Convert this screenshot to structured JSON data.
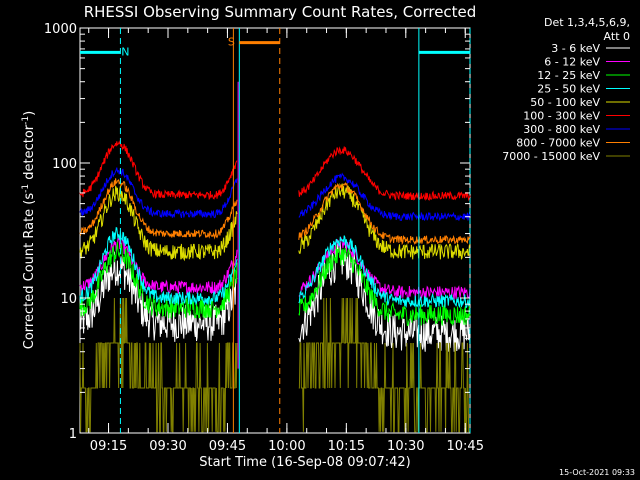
{
  "chart_data": {
    "type": "line",
    "title": "RHESSI Observing Summary Count Rates, Corrected",
    "xlabel": "Start Time (16-Sep-08 09:07:42)",
    "ylabel_main": "Corrected Count Rate (s",
    "ylabel_sup1": "-1",
    "ylabel_mid": " detector",
    "ylabel_sup2": "-1",
    "ylabel_end": ")",
    "yscale": "log",
    "ylim": [
      1,
      1000
    ],
    "xlim_minutes": [
      9.13,
      10.77
    ],
    "yticks": [
      {
        "value": 1,
        "label": "1"
      },
      {
        "value": 10,
        "label": "10"
      },
      {
        "value": 100,
        "label": "100"
      },
      {
        "value": 1000,
        "label": "1000"
      }
    ],
    "xticks": [
      {
        "t": 9.25,
        "label": "09:15"
      },
      {
        "t": 9.5,
        "label": "09:30"
      },
      {
        "t": 9.75,
        "label": "09:45"
      },
      {
        "t": 10.0,
        "label": "10:00"
      },
      {
        "t": 10.25,
        "label": "10:15"
      },
      {
        "t": 10.5,
        "label": "10:30"
      },
      {
        "t": 10.75,
        "label": "10:45"
      }
    ],
    "legend": {
      "placement": "right",
      "header1": "Det 1,3,4,5,6,9,",
      "header2": "Att 0"
    },
    "series": [
      {
        "name": "3 - 6 keV",
        "color": "#ffffff",
        "pre_level": 6.5,
        "pre_peak": 17,
        "post_peak": 19,
        "post_level": 5.5,
        "noise": 0.14
      },
      {
        "name": "6 - 12 keV",
        "color": "#ff00ff",
        "pre_level": 12,
        "pre_peak": 25,
        "post_peak": 25,
        "post_level": 11,
        "noise": 0.05
      },
      {
        "name": "12 - 25 keV",
        "color": "#00ff00",
        "pre_level": 8.5,
        "pre_peak": 22,
        "post_peak": 21,
        "post_level": 7.5,
        "noise": 0.08
      },
      {
        "name": "25 - 50 keV",
        "color": "#00ffff",
        "pre_level": 10,
        "pre_peak": 30,
        "post_peak": 27,
        "post_level": 9.5,
        "noise": 0.05
      },
      {
        "name": "50 - 100 keV",
        "color": "#dddd00",
        "pre_level": 22,
        "pre_peak": 60,
        "post_peak": 62,
        "post_level": 22,
        "noise": 0.06
      },
      {
        "name": "100 - 300 keV",
        "color": "#ff0000",
        "pre_level": 58,
        "pre_peak": 140,
        "post_peak": 125,
        "post_level": 57,
        "noise": 0.03
      },
      {
        "name": "300 - 800 keV",
        "color": "#0000ff",
        "pre_level": 42,
        "pre_peak": 88,
        "post_peak": 78,
        "post_level": 40,
        "noise": 0.03
      },
      {
        "name": "800 - 7000 keV",
        "color": "#ff7f00",
        "pre_level": 30,
        "pre_peak": 73,
        "post_peak": 68,
        "post_level": 27,
        "noise": 0.03
      },
      {
        "name": "7000 - 15000 keV",
        "color": "#808000",
        "pre_level": 2.0,
        "pre_peak": 5.5,
        "post_peak": 5.5,
        "post_level": 2.0,
        "noise": 0.12
      }
    ],
    "segments": {
      "pre_start": 9.13,
      "pre_end": 9.79,
      "post_start": 10.05,
      "post_end": 10.77,
      "pre_peak_t": 9.29,
      "post_peak_t": 10.23,
      "pre_rise_t": 9.7,
      "gap_spike_t": 9.795
    },
    "flags": [
      {
        "label": "N",
        "color": "#00ffff",
        "bar_start": 9.13,
        "bar_end": 9.3,
        "value": 660
      },
      {
        "label": "",
        "color": "#00ffff",
        "bar_start": 10.555,
        "bar_end": 10.77,
        "value": 660
      },
      {
        "label": "S",
        "color": "#ff7f00",
        "bar_start": 9.8,
        "bar_end": 9.97,
        "value": 780
      }
    ],
    "vlines": [
      {
        "t": 9.3,
        "color": "#00ffff",
        "dashed": true
      },
      {
        "t": 9.775,
        "color": "#ff7f00",
        "dashed": false
      },
      {
        "t": 9.8,
        "color": "#00ffff",
        "dashed": false
      },
      {
        "t": 9.97,
        "color": "#ff7f00",
        "dashed": true
      },
      {
        "t": 10.555,
        "color": "#00ffff",
        "dashed": false
      },
      {
        "t": 10.77,
        "color": "#00ffff",
        "dashed": true
      }
    ]
  },
  "footer_timestamp": "15-Oct-2021 09:33"
}
